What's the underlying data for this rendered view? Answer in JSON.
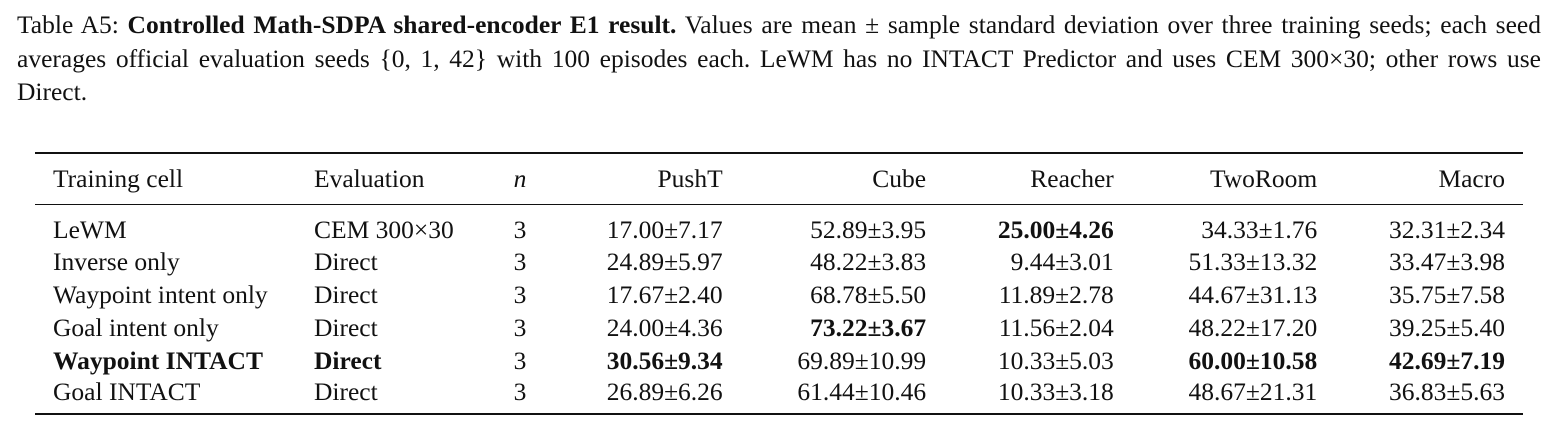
{
  "caption": {
    "label": "Table A5:",
    "title": "Controlled Math-SDPA shared-encoder E1 result.",
    "body": "Values are mean ± sample standard deviation over three training seeds; each seed averages official evaluation seeds {0, 1, 42} with 100 episodes each. LeWM has no INTACT Predictor and uses CEM 300×30; other rows use Direct."
  },
  "table": {
    "columns": [
      "Training cell",
      "Evaluation",
      "n",
      "PushT",
      "Cube",
      "Reacher",
      "TwoRoom",
      "Macro"
    ],
    "rows": [
      {
        "cells": [
          "LeWM",
          "CEM 300×30",
          "3",
          "17.00±7.17",
          "52.89±3.95",
          "25.00±4.26",
          "34.33±1.76",
          "32.31±2.34"
        ],
        "bold": [
          5
        ]
      },
      {
        "cells": [
          "Inverse only",
          "Direct",
          "3",
          "24.89±5.97",
          "48.22±3.83",
          "9.44±3.01",
          "51.33±13.32",
          "33.47±3.98"
        ],
        "bold": []
      },
      {
        "cells": [
          "Waypoint intent only",
          "Direct",
          "3",
          "17.67±2.40",
          "68.78±5.50",
          "11.89±2.78",
          "44.67±31.13",
          "35.75±7.58"
        ],
        "bold": []
      },
      {
        "cells": [
          "Goal intent only",
          "Direct",
          "3",
          "24.00±4.36",
          "73.22±3.67",
          "11.56±2.04",
          "48.22±17.20",
          "39.25±5.40"
        ],
        "bold": [
          4
        ]
      },
      {
        "cells": [
          "Waypoint INTACT",
          "Direct",
          "3",
          "30.56±9.34",
          "69.89±10.99",
          "10.33±5.03",
          "60.00±10.58",
          "42.69±7.19"
        ],
        "bold": [
          0,
          1,
          3,
          6,
          7
        ]
      },
      {
        "cells": [
          "Goal INTACT",
          "Direct",
          "3",
          "26.89±6.26",
          "61.44±10.46",
          "10.33±3.18",
          "48.67±21.31",
          "36.83±5.63"
        ],
        "bold": []
      }
    ]
  }
}
